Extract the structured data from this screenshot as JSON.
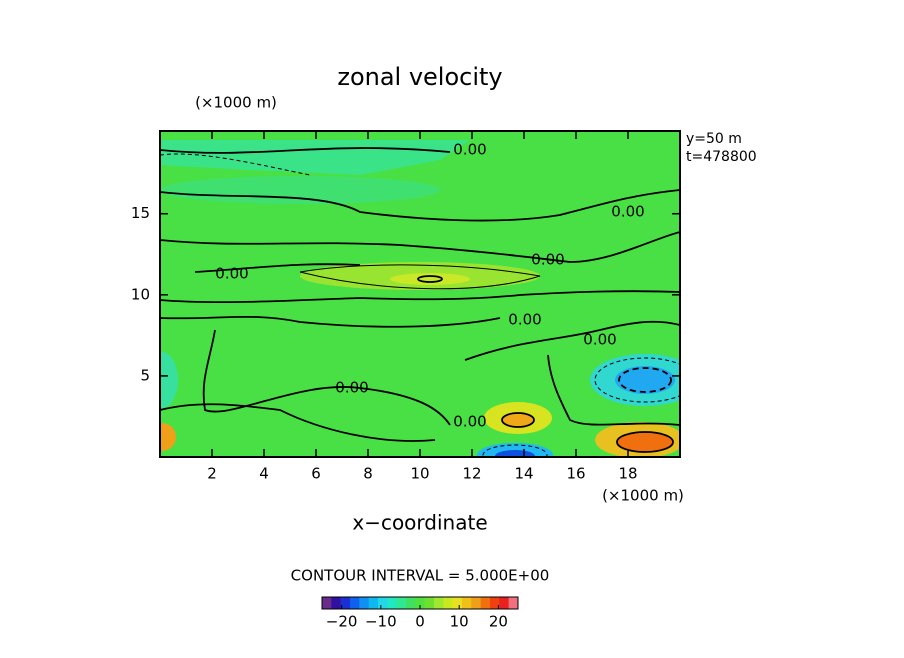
{
  "chart_data": {
    "type": "contour",
    "title": "zonal velocity",
    "xlabel": "x−coordinate",
    "x_unit": "(×1000 m)",
    "y_unit": "(×1000 m)",
    "annotations": [
      "y=50 m",
      "t=478800"
    ],
    "contour_interval_text": "CONTOUR INTERVAL = 5.000E+00",
    "contour_label": "0.00",
    "xlim": [
      0,
      20
    ],
    "xticks": [
      2,
      4,
      6,
      8,
      10,
      12,
      14,
      16,
      18
    ],
    "ylim": [
      0,
      20.1
    ],
    "yticks": [
      5,
      10,
      15
    ],
    "colorbar": {
      "clim": [
        -25,
        25
      ],
      "ticks": [
        {
          "value": -20,
          "label": "−20"
        },
        {
          "value": -10,
          "label": "−10"
        },
        0,
        10,
        20
      ],
      "colors": [
        "#6a2c8a",
        "#3010a0",
        "#1a30d0",
        "#1060f0",
        "#1090f0",
        "#10b8f0",
        "#20d8e8",
        "#20e8c0",
        "#30e890",
        "#40e060",
        "#50e040",
        "#70e030",
        "#a0e830",
        "#c8e820",
        "#e8e020",
        "#f0c018",
        "#f0a018",
        "#f07010",
        "#f04010",
        "#e82020",
        "#f07080"
      ]
    }
  }
}
